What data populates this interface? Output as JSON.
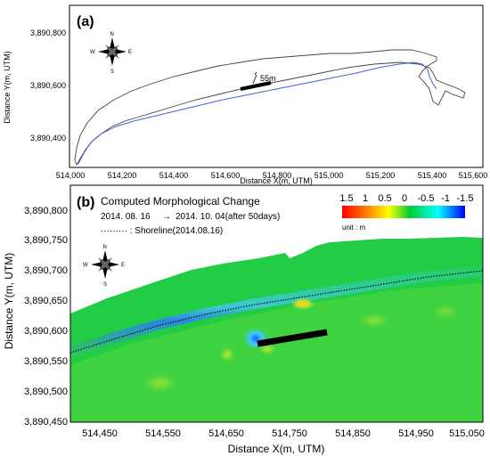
{
  "panel_a": {
    "label": "(a)",
    "x_label": "Distance X(m, UTM)",
    "y_label": "Distance Y(m, UTM)",
    "x_ticks": [
      "514,000",
      "514,200",
      "514,400",
      "514,600",
      "514,800",
      "515,000",
      "515,200",
      "515,400",
      "515,600"
    ],
    "y_ticks": [
      "3,890,800",
      "3,890,600",
      "3,890,400"
    ],
    "annotation": "55m",
    "compass": {
      "n": "N",
      "s": "S",
      "e": "E",
      "w": "W"
    }
  },
  "panel_b": {
    "label": "(b)",
    "title": "Computed Morphological Change",
    "period_start": "2014. 08. 16",
    "arrow": "→",
    "period_end": "2014. 10. 04(after 50days)",
    "legend_line": "········· : Shoreline(2014.08.16)",
    "colorbar": {
      "ticks": [
        "1.5",
        "1",
        "0.5",
        "0",
        "-0.5",
        "-1",
        "-1.5"
      ],
      "unit": "unit : m",
      "colors": [
        "#ff0000",
        "#ff8000",
        "#ffff00",
        "#00cc33",
        "#00ffff",
        "#0000ff"
      ]
    },
    "x_label": "Distance X(m, UTM)",
    "y_label": "Distance Y(m, UTM)",
    "x_ticks": [
      "514,450",
      "514,550",
      "514,650",
      "514,750",
      "514,850",
      "514,950",
      "515,050"
    ],
    "y_ticks": [
      "3,890,800",
      "3,890,750",
      "3,890,700",
      "3,890,650",
      "3,890,600",
      "3,890,550",
      "3,890,500",
      "3,890,450"
    ],
    "compass": {
      "n": "N",
      "s": "S",
      "e": "E",
      "w": "W"
    }
  }
}
